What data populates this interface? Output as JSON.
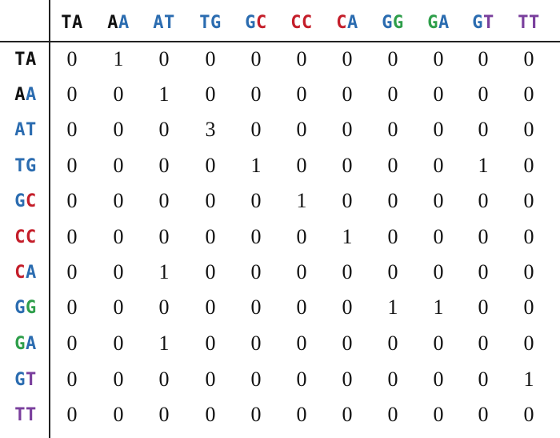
{
  "colors": {
    "T": "#111111",
    "A": "#2b6cb0",
    "G": "#2e9e4a",
    "C": "#c41e2a",
    "line": "#222222",
    "T_alt": "#7a3f9d"
  },
  "table": {
    "labels": [
      [
        {
          "ch": "T",
          "color": "#111111"
        },
        {
          "ch": "A",
          "color": "#111111"
        }
      ],
      [
        {
          "ch": "A",
          "color": "#111111"
        },
        {
          "ch": "A",
          "color": "#2b6cb0"
        }
      ],
      [
        {
          "ch": "A",
          "color": "#2b6cb0"
        },
        {
          "ch": "T",
          "color": "#2b6cb0"
        }
      ],
      [
        {
          "ch": "T",
          "color": "#2b6cb0"
        },
        {
          "ch": "G",
          "color": "#2b6cb0"
        }
      ],
      [
        {
          "ch": "G",
          "color": "#2b6cb0"
        },
        {
          "ch": "C",
          "color": "#c41e2a"
        }
      ],
      [
        {
          "ch": "C",
          "color": "#c41e2a"
        },
        {
          "ch": "C",
          "color": "#c41e2a"
        }
      ],
      [
        {
          "ch": "C",
          "color": "#c41e2a"
        },
        {
          "ch": "A",
          "color": "#2b6cb0"
        }
      ],
      [
        {
          "ch": "G",
          "color": "#2b6cb0"
        },
        {
          "ch": "G",
          "color": "#2e9e4a"
        }
      ],
      [
        {
          "ch": "G",
          "color": "#2e9e4a"
        },
        {
          "ch": "A",
          "color": "#2b6cb0"
        }
      ],
      [
        {
          "ch": "G",
          "color": "#2b6cb0"
        },
        {
          "ch": "T",
          "color": "#7a3f9d"
        }
      ],
      [
        {
          "ch": "T",
          "color": "#7a3f9d"
        },
        {
          "ch": "T",
          "color": "#7a3f9d"
        }
      ]
    ],
    "label_keys": [
      "ta",
      "aa",
      "at",
      "tg",
      "gc",
      "cc",
      "ca",
      "gg",
      "ga",
      "gt",
      "tt"
    ],
    "matrix": [
      [
        0,
        1,
        0,
        0,
        0,
        0,
        0,
        0,
        0,
        0,
        0
      ],
      [
        0,
        0,
        1,
        0,
        0,
        0,
        0,
        0,
        0,
        0,
        0
      ],
      [
        0,
        0,
        0,
        3,
        0,
        0,
        0,
        0,
        0,
        0,
        0
      ],
      [
        0,
        0,
        0,
        0,
        1,
        0,
        0,
        0,
        0,
        1,
        0
      ],
      [
        0,
        0,
        0,
        0,
        0,
        1,
        0,
        0,
        0,
        0,
        0
      ],
      [
        0,
        0,
        0,
        0,
        0,
        0,
        1,
        0,
        0,
        0,
        0
      ],
      [
        0,
        0,
        1,
        0,
        0,
        0,
        0,
        0,
        0,
        0,
        0
      ],
      [
        0,
        0,
        0,
        0,
        0,
        0,
        0,
        1,
        1,
        0,
        0
      ],
      [
        0,
        0,
        1,
        0,
        0,
        0,
        0,
        0,
        0,
        0,
        0
      ],
      [
        0,
        0,
        0,
        0,
        0,
        0,
        0,
        0,
        0,
        0,
        1
      ],
      [
        0,
        0,
        0,
        0,
        0,
        0,
        0,
        0,
        0,
        0,
        0
      ]
    ]
  }
}
